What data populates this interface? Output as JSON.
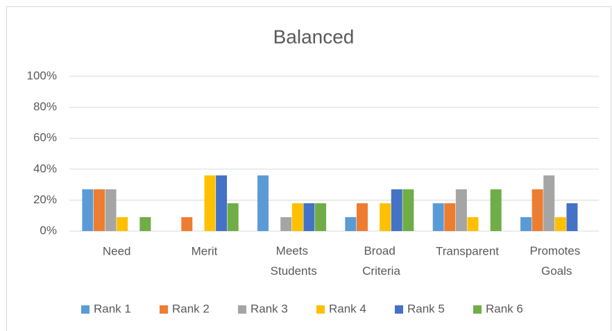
{
  "chart_data": {
    "type": "bar",
    "title": "Balanced",
    "categories": [
      "Need",
      "Merit",
      "Meets Students",
      "Broad Criteria",
      "Transparent",
      "Promotes Goals"
    ],
    "series": [
      {
        "name": "Rank 1",
        "color": "#5b9bd5",
        "values": [
          27,
          0,
          36,
          9,
          18,
          9
        ]
      },
      {
        "name": "Rank 2",
        "color": "#ed7d31",
        "values": [
          27,
          9,
          0,
          18,
          18,
          27
        ]
      },
      {
        "name": "Rank 3",
        "color": "#a5a5a5",
        "values": [
          27,
          0,
          9,
          0,
          27,
          36
        ]
      },
      {
        "name": "Rank 4",
        "color": "#ffc000",
        "values": [
          9,
          36,
          18,
          18,
          9,
          9
        ]
      },
      {
        "name": "Rank 5",
        "color": "#4472c4",
        "values": [
          0,
          36,
          18,
          27,
          0,
          18
        ]
      },
      {
        "name": "Rank 6",
        "color": "#70ad47",
        "values": [
          9,
          18,
          18,
          27,
          27,
          0
        ]
      }
    ],
    "ylim": [
      0,
      100
    ],
    "yticks": [
      {
        "value": 0,
        "label": "0%"
      },
      {
        "value": 20,
        "label": "20%"
      },
      {
        "value": 40,
        "label": "40%"
      },
      {
        "value": 60,
        "label": "60%"
      },
      {
        "value": 80,
        "label": "80%"
      },
      {
        "value": 100,
        "label": "100%"
      }
    ],
    "grid": true,
    "legend": "bottom"
  }
}
